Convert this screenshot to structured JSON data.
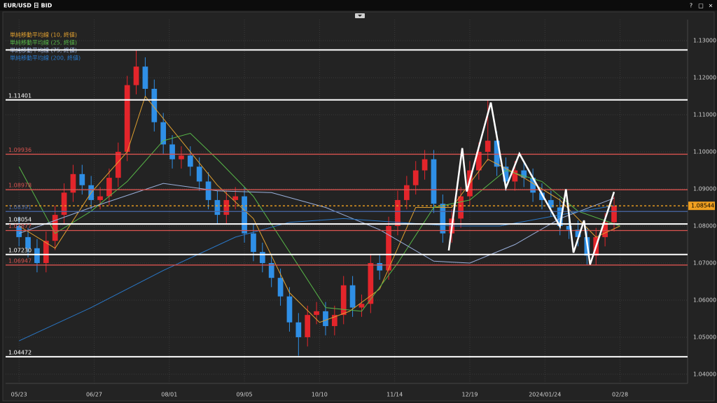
{
  "window_title": "EUR/USD 日 BID",
  "window_buttons": [
    "?",
    "□",
    "×"
  ],
  "chart_data": {
    "type": "candlestick",
    "up_color": "#e3252b",
    "down_color": "#2f8fe6",
    "x": [
      0,
      3,
      6,
      9,
      12,
      15,
      18,
      21,
      24,
      27,
      30,
      33,
      36,
      39,
      42,
      45,
      48,
      51,
      54,
      57,
      60,
      63,
      66,
      69,
      72,
      75,
      78,
      81,
      84,
      87,
      90,
      93,
      96,
      99,
      102,
      105,
      108,
      111,
      114,
      117,
      120,
      123,
      126,
      129,
      132,
      135,
      138,
      141,
      144,
      147,
      150,
      153,
      156,
      159,
      162,
      165,
      168,
      171,
      174,
      177,
      180,
      183,
      186,
      189,
      192,
      195,
      198
    ],
    "open": [
      1.08,
      1.077,
      1.074,
      1.07,
      1.076,
      1.083,
      1.089,
      1.094,
      1.091,
      1.087,
      1.088,
      1.093,
      1.1,
      1.118,
      1.123,
      1.117,
      1.108,
      1.102,
      1.098,
      1.099,
      1.096,
      1.092,
      1.087,
      1.083,
      1.087,
      1.088,
      1.078,
      1.073,
      1.07,
      1.066,
      1.061,
      1.054,
      1.05,
      1.056,
      1.057,
      1.053,
      1.056,
      1.064,
      1.058,
      1.059,
      1.07,
      1.068,
      1.08,
      1.087,
      1.091,
      1.095,
      1.098,
      1.086,
      1.078,
      1.082,
      1.088,
      1.095,
      1.1,
      1.103,
      1.096,
      1.092,
      1.095,
      1.093,
      1.089,
      1.087,
      1.085,
      1.08,
      1.079,
      1.077,
      1.072,
      1.077,
      1.081
    ],
    "high": [
      1.0825,
      1.0795,
      1.0765,
      1.0785,
      1.0855,
      1.0915,
      1.0965,
      1.0965,
      1.0935,
      1.0905,
      1.0955,
      1.1025,
      1.1205,
      1.1275,
      1.1255,
      1.1195,
      1.1105,
      1.1045,
      1.1015,
      1.1015,
      1.0985,
      1.0945,
      1.0895,
      1.0895,
      1.0905,
      1.0905,
      1.0805,
      1.0755,
      1.0725,
      1.0685,
      1.0635,
      1.0565,
      1.0585,
      1.0595,
      1.0595,
      1.0585,
      1.0665,
      1.0665,
      1.0615,
      1.0725,
      1.0725,
      1.0825,
      1.0895,
      1.0935,
      1.0975,
      1.1005,
      1.1005,
      1.0885,
      1.0845,
      1.0905,
      1.0975,
      1.1025,
      1.114,
      1.1055,
      1.0985,
      1.0975,
      1.0975,
      1.0955,
      1.0915,
      1.0895,
      1.0875,
      1.0825,
      1.0815,
      1.0795,
      1.0795,
      1.0835,
      1.0879
    ],
    "low": [
      1.0745,
      1.0715,
      1.0675,
      1.0675,
      1.0735,
      1.0805,
      1.0865,
      1.0885,
      1.0845,
      1.0845,
      1.0855,
      1.0905,
      1.0975,
      1.1155,
      1.1145,
      1.1055,
      1.0995,
      1.0955,
      1.0955,
      1.0935,
      1.0895,
      1.0845,
      1.0805,
      1.0805,
      1.0845,
      1.0755,
      1.0705,
      1.0675,
      1.0635,
      1.0585,
      1.0515,
      1.045,
      1.0475,
      1.0535,
      1.0505,
      1.0505,
      1.0535,
      1.0555,
      1.0555,
      1.0565,
      1.0655,
      1.0655,
      1.0775,
      1.0845,
      1.0885,
      1.0925,
      1.0835,
      1.0755,
      1.0755,
      1.0795,
      1.0855,
      1.0925,
      1.0975,
      1.0935,
      1.0895,
      1.0895,
      1.0905,
      1.0865,
      1.0845,
      1.0825,
      1.0775,
      1.0765,
      1.0745,
      1.0695,
      1.0695,
      1.0745,
      1.0785
    ],
    "close": [
      1.077,
      1.074,
      1.07,
      1.076,
      1.083,
      1.089,
      1.094,
      1.091,
      1.087,
      1.088,
      1.093,
      1.1,
      1.118,
      1.123,
      1.117,
      1.108,
      1.102,
      1.098,
      1.099,
      1.096,
      1.092,
      1.087,
      1.083,
      1.087,
      1.088,
      1.078,
      1.073,
      1.07,
      1.066,
      1.061,
      1.054,
      1.05,
      1.056,
      1.057,
      1.053,
      1.056,
      1.064,
      1.058,
      1.059,
      1.07,
      1.068,
      1.08,
      1.087,
      1.091,
      1.095,
      1.098,
      1.086,
      1.078,
      1.082,
      1.088,
      1.095,
      1.1,
      1.103,
      1.096,
      1.092,
      1.095,
      1.093,
      1.089,
      1.087,
      1.085,
      1.08,
      1.079,
      1.077,
      1.072,
      1.077,
      1.081,
      1.0854
    ],
    "series": [
      {
        "name": "単純移動平均線 (10, 終値)",
        "color": "#e0a030",
        "x": [
          0,
          12,
          24,
          36,
          42,
          54,
          66,
          78,
          90,
          100,
          110,
          120,
          132,
          144,
          156,
          168,
          180,
          192,
          200
        ],
        "values": [
          1.08,
          1.074,
          1.089,
          1.1,
          1.115,
          1.103,
          1.091,
          1.082,
          1.062,
          1.054,
          1.057,
          1.063,
          1.085,
          1.085,
          1.098,
          1.093,
          1.087,
          1.077,
          1.08
        ]
      },
      {
        "name": "単純移動平均線 (25, 終値)",
        "color": "#58b848",
        "x": [
          0,
          12,
          24,
          36,
          48,
          57,
          66,
          78,
          90,
          102,
          114,
          126,
          138,
          150,
          162,
          174,
          186,
          200
        ],
        "values": [
          1.096,
          1.078,
          1.084,
          1.092,
          1.103,
          1.105,
          1.098,
          1.088,
          1.073,
          1.058,
          1.057,
          1.07,
          1.085,
          1.087,
          1.095,
          1.092,
          1.084,
          1.08
        ]
      },
      {
        "name": "単純移動平均線 (75, 終値)",
        "color": "#9ab0dc",
        "x": [
          0,
          24,
          48,
          66,
          84,
          102,
          120,
          138,
          150,
          165,
          180,
          198
        ],
        "values": [
          1.078,
          1.085,
          1.0915,
          1.0895,
          1.089,
          1.085,
          1.079,
          1.0705,
          1.07,
          1.075,
          1.082,
          1.0875
        ]
      },
      {
        "name": "単純移動平均線 (200, 終値)",
        "color": "#2a78c8",
        "x": [
          0,
          24,
          48,
          72,
          90,
          108,
          126,
          144,
          160,
          180,
          198
        ],
        "values": [
          1.049,
          1.058,
          1.068,
          1.077,
          1.081,
          1.082,
          1.081,
          1.08,
          1.08,
          1.083,
          1.0855
        ]
      }
    ],
    "levels": [
      {
        "value": 1.1275,
        "color": "#ffffff"
      },
      {
        "value": 1.11401,
        "label": "1.11401",
        "color": "#ffffff"
      },
      {
        "value": 1.09936,
        "label": "1.09936",
        "color": "#d9534f"
      },
      {
        "value": 1.08978,
        "label": "1.08978",
        "color": "#d9534f"
      },
      {
        "value": 1.08544,
        "label": "1.08544",
        "color": "#f0a020",
        "dashed": true,
        "price_tag": true
      },
      {
        "value": 1.08391,
        "label": "1.08391",
        "color": "#4a6aa8"
      },
      {
        "value": 1.08054,
        "label": "1.08054",
        "color": "#ffffff"
      },
      {
        "value": 1.07877,
        "label": "1.07877",
        "color": "#d9534f"
      },
      {
        "value": 1.0723,
        "label": "1.07230",
        "color": "#ffffff"
      },
      {
        "value": 1.06947,
        "label": "1.06947",
        "color": "#d9534f"
      },
      {
        "value": 1.04472,
        "label": "1.04472",
        "color": "#ffffff"
      }
    ],
    "drawings": [
      {
        "color": "#ffffff",
        "x": [
          143,
          147.5,
          149,
          157,
          162,
          166.5,
          180,
          182,
          184.5,
          188,
          190,
          198
        ],
        "y": [
          1.0734,
          1.101,
          1.0893,
          1.1133,
          1.0903,
          1.0995,
          1.0799,
          1.0899,
          1.0728,
          1.0815,
          1.0696,
          1.0892
        ]
      }
    ],
    "xlim": [
      -4,
      222
    ],
    "xticks": [
      {
        "value": 0,
        "label": "05/23"
      },
      {
        "value": 25,
        "label": "06/27"
      },
      {
        "value": 50,
        "label": "08/01"
      },
      {
        "value": 75,
        "label": "09/05"
      },
      {
        "value": 100,
        "label": "10/10"
      },
      {
        "value": 125,
        "label": "11/14"
      },
      {
        "value": 150,
        "label": "12/19"
      },
      {
        "value": 175,
        "label": "2024/01/24"
      },
      {
        "value": 200,
        "label": "02/28"
      }
    ],
    "ylim": [
      1.0381,
      1.1353
    ],
    "yticks": [
      {
        "value": 1.04,
        "label": "1.04000"
      },
      {
        "value": 1.05,
        "label": "1.05000"
      },
      {
        "value": 1.06,
        "label": "1.06000"
      },
      {
        "value": 1.07,
        "label": "1.07000"
      },
      {
        "value": 1.08,
        "label": "1.08000"
      },
      {
        "value": 1.09,
        "label": "1.09000"
      },
      {
        "value": 1.1,
        "label": "1.10000"
      },
      {
        "value": 1.11,
        "label": "1.11000"
      },
      {
        "value": 1.12,
        "label": "1.12000"
      },
      {
        "value": 1.13,
        "label": "1.13000"
      }
    ],
    "grid": true
  }
}
